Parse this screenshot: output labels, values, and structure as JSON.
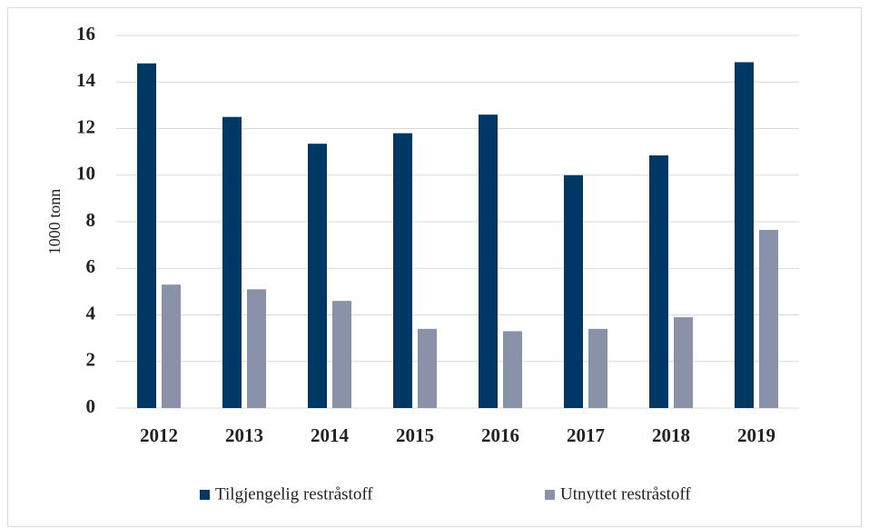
{
  "chart_data": {
    "type": "bar",
    "y_label": "1000 tonn",
    "categories": [
      "2012",
      "2013",
      "2014",
      "2015",
      "2016",
      "2017",
      "2018",
      "2019"
    ],
    "series": [
      {
        "name": "Tilgjengelig restråstoff",
        "color": "#003865",
        "values": [
          14.8,
          12.5,
          11.35,
          11.8,
          12.6,
          10.0,
          10.85,
          14.85
        ]
      },
      {
        "name": "Utnyttet restråstoff",
        "color": "#8a92aa",
        "values": [
          5.3,
          5.1,
          4.6,
          3.4,
          3.3,
          3.4,
          3.9,
          7.65
        ]
      }
    ],
    "ylim": [
      0,
      16
    ],
    "yticks": [
      0,
      2,
      4,
      6,
      8,
      10,
      12,
      14,
      16
    ],
    "grid": true,
    "legend": "bottom"
  }
}
